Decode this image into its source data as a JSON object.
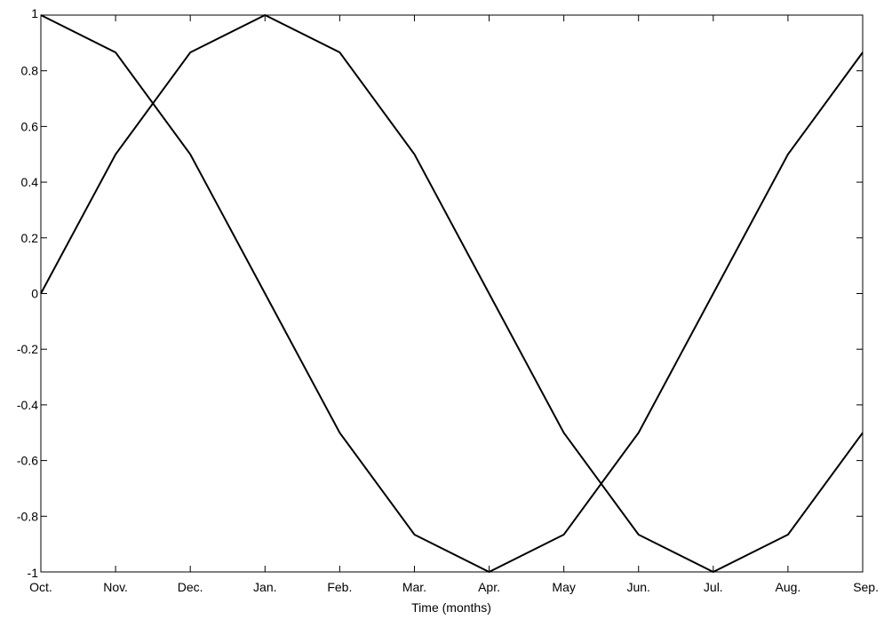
{
  "chart_data": {
    "type": "line",
    "title": "",
    "xlabel": "Time (months)",
    "ylabel": "",
    "categories": [
      "Oct.",
      "Nov.",
      "Dec.",
      "Jan.",
      "Feb.",
      "Mar.",
      "Apr.",
      "May",
      "Jun.",
      "Jul.",
      "Aug.",
      "Sep."
    ],
    "ylim": [
      -1,
      1
    ],
    "yticks": [
      "1",
      "0.8",
      "0.6",
      "0.4",
      "0.2",
      "0",
      "-0.2",
      "-0.4",
      "-0.6",
      "-0.8",
      "-1"
    ],
    "grid": false,
    "legend": "none",
    "line_color": "#000000",
    "series": [
      {
        "values": [
          1,
          0.866,
          0.5,
          0,
          -0.5,
          -0.866,
          -1,
          -0.866,
          -0.5,
          0,
          0.5,
          0.866
        ]
      },
      {
        "values": [
          0,
          0.5,
          0.866,
          1,
          0.866,
          0.5,
          0,
          -0.5,
          -0.866,
          -1,
          -0.866,
          -0.5
        ]
      }
    ]
  }
}
